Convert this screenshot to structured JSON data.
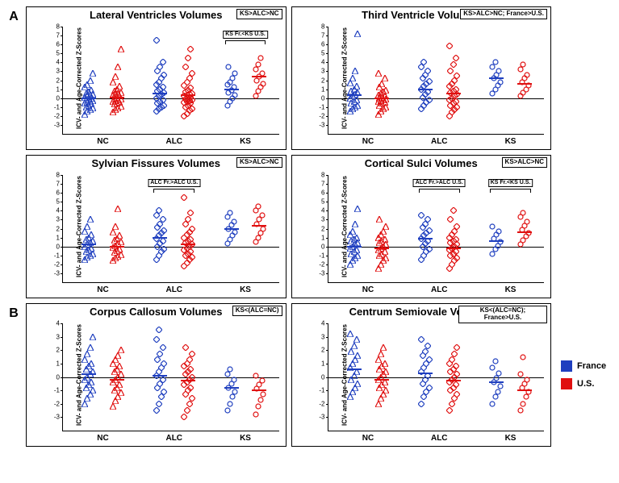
{
  "colors": {
    "france": "#1f3fbf",
    "us": "#e01010",
    "axis": "#000000",
    "bg": "#ffffff"
  },
  "legend": {
    "france": "France",
    "us": "U.S."
  },
  "section_labels": {
    "A": "A",
    "B": "B"
  },
  "axis": {
    "ylabel": "ICV- and Age-Corrected Z-Scores",
    "categories": [
      "NC",
      "ALC",
      "KS"
    ],
    "ymin": -4,
    "ymax": 8,
    "ystep": 1,
    "ymin_b": -4,
    "ymax_b": 4
  },
  "markers": {
    "NC": "triangle",
    "ALC": "diamond",
    "KS": "circle",
    "size": 8
  },
  "panels": [
    {
      "id": "lat_vent",
      "title": "Lateral Ventricles Volumes",
      "badge": "KS>ALC>NC",
      "ymin": -4,
      "ymax": 8,
      "brackets": [
        {
          "label": "KS Fr.<KS U.S.",
          "group": "KS"
        }
      ],
      "series": {
        "NC": {
          "france": {
            "mean": 0.0,
            "points": [
              -1.8,
              -1.5,
              -1.3,
              -1.1,
              -1.0,
              -0.8,
              -0.7,
              -0.6,
              -0.5,
              -0.4,
              -0.3,
              -0.2,
              -0.1,
              0.0,
              0.1,
              0.2,
              0.3,
              0.4,
              0.5,
              0.7,
              0.9,
              1.2,
              1.5,
              2.0,
              2.8
            ]
          },
          "us": {
            "mean": 0.1,
            "points": [
              -1.6,
              -1.3,
              -1.1,
              -0.9,
              -0.7,
              -0.6,
              -0.5,
              -0.4,
              -0.3,
              -0.2,
              -0.1,
              0.0,
              0.1,
              0.2,
              0.3,
              0.4,
              0.5,
              0.6,
              0.8,
              1.0,
              1.3,
              1.8,
              2.4,
              3.5,
              5.5
            ]
          }
        },
        "ALC": {
          "france": {
            "mean": 0.5,
            "points": [
              -1.5,
              -1.2,
              -1.0,
              -0.8,
              -0.6,
              -0.4,
              -0.2,
              0.0,
              0.2,
              0.4,
              0.6,
              0.8,
              1.0,
              1.2,
              1.5,
              1.8,
              2.2,
              2.6,
              3.0,
              3.5,
              4.0,
              6.5
            ]
          },
          "us": {
            "mean": 0.3,
            "points": [
              -2.0,
              -1.7,
              -1.4,
              -1.2,
              -1.0,
              -0.8,
              -0.6,
              -0.5,
              -0.4,
              -0.3,
              -0.2,
              -0.1,
              0.0,
              0.1,
              0.2,
              0.3,
              0.4,
              0.5,
              0.7,
              0.9,
              1.1,
              1.4,
              1.8,
              2.2,
              2.8,
              3.5,
              4.5,
              5.5
            ]
          }
        },
        "KS": {
          "france": {
            "mean": 1.0,
            "points": [
              -0.8,
              -0.4,
              0.0,
              0.3,
              0.6,
              0.9,
              1.2,
              1.5,
              1.8,
              2.2,
              2.8,
              3.5
            ]
          },
          "us": {
            "mean": 2.4,
            "points": [
              0.2,
              0.8,
              1.2,
              1.6,
              2.0,
              2.4,
              2.8,
              3.2,
              3.8,
              4.5
            ]
          }
        }
      }
    },
    {
      "id": "third_vent",
      "title": "Third Ventricle Volumes",
      "badge": "KS>ALC>NC; France>U.S.",
      "ymin": -4,
      "ymax": 8,
      "brackets": [],
      "series": {
        "NC": {
          "france": {
            "mean": 0.3,
            "points": [
              -1.5,
              -1.2,
              -1.0,
              -0.8,
              -0.6,
              -0.4,
              -0.2,
              0.0,
              0.2,
              0.4,
              0.6,
              0.8,
              1.0,
              1.3,
              1.7,
              2.2,
              3.0,
              7.2
            ]
          },
          "us": {
            "mean": 0.0,
            "points": [
              -1.8,
              -1.5,
              -1.2,
              -1.0,
              -0.8,
              -0.6,
              -0.5,
              -0.4,
              -0.3,
              -0.2,
              -0.1,
              0.0,
              0.1,
              0.2,
              0.3,
              0.5,
              0.7,
              0.9,
              1.2,
              1.6,
              2.2,
              2.8
            ]
          }
        },
        "ALC": {
          "france": {
            "mean": 1.0,
            "points": [
              -1.2,
              -0.8,
              -0.5,
              -0.2,
              0.1,
              0.4,
              0.7,
              1.0,
              1.3,
              1.6,
              1.9,
              2.2,
              2.6,
              3.0,
              3.5,
              4.0
            ]
          },
          "us": {
            "mean": 0.5,
            "points": [
              -2.0,
              -1.6,
              -1.3,
              -1.0,
              -0.8,
              -0.6,
              -0.4,
              -0.2,
              0.0,
              0.2,
              0.4,
              0.6,
              0.8,
              1.0,
              1.3,
              1.6,
              2.0,
              2.5,
              3.0,
              3.8,
              4.5,
              5.8
            ]
          }
        },
        "KS": {
          "france": {
            "mean": 2.2,
            "points": [
              0.5,
              1.0,
              1.4,
              1.8,
              2.2,
              2.6,
              3.0,
              3.5,
              4.0
            ]
          },
          "us": {
            "mean": 1.6,
            "points": [
              0.2,
              0.6,
              1.0,
              1.4,
              1.8,
              2.2,
              2.6,
              3.2,
              3.8
            ]
          }
        }
      }
    },
    {
      "id": "sylvian",
      "title": "Sylvian Fissures Volumes",
      "badge": "KS>ALC>NC",
      "ymin": -4,
      "ymax": 8,
      "brackets": [
        {
          "label": "ALC Fr.>ALC U.S.",
          "group": "ALC"
        }
      ],
      "series": {
        "NC": {
          "france": {
            "mean": 0.2,
            "points": [
              -1.5,
              -1.2,
              -1.0,
              -0.8,
              -0.6,
              -0.4,
              -0.2,
              0.0,
              0.2,
              0.4,
              0.6,
              0.8,
              1.0,
              1.3,
              1.7,
              2.2,
              3.0
            ]
          },
          "us": {
            "mean": 0.0,
            "points": [
              -1.6,
              -1.3,
              -1.1,
              -0.9,
              -0.7,
              -0.5,
              -0.3,
              -0.1,
              0.1,
              0.3,
              0.5,
              0.7,
              0.9,
              1.2,
              1.6,
              2.2,
              4.2
            ]
          }
        },
        "ALC": {
          "france": {
            "mean": 1.0,
            "points": [
              -1.5,
              -1.0,
              -0.6,
              -0.3,
              0.0,
              0.3,
              0.6,
              0.9,
              1.2,
              1.5,
              1.8,
              2.1,
              2.5,
              3.0,
              3.5,
              4.0
            ]
          },
          "us": {
            "mean": 0.2,
            "points": [
              -2.2,
              -1.8,
              -1.5,
              -1.2,
              -1.0,
              -0.8,
              -0.6,
              -0.4,
              -0.2,
              0.0,
              0.2,
              0.4,
              0.6,
              0.8,
              1.0,
              1.3,
              1.6,
              2.0,
              2.5,
              3.0,
              3.8,
              5.5
            ]
          }
        },
        "KS": {
          "france": {
            "mean": 2.0,
            "points": [
              0.3,
              0.8,
              1.2,
              1.6,
              2.0,
              2.4,
              2.8,
              3.3,
              3.8
            ]
          },
          "us": {
            "mean": 2.3,
            "points": [
              0.5,
              1.0,
              1.5,
              2.0,
              2.5,
              3.0,
              3.5,
              4.0,
              4.5
            ]
          }
        }
      }
    },
    {
      "id": "cortical",
      "title": "Cortical Sulci Volumes",
      "badge": "KS>ALC>NC",
      "ymin": -4,
      "ymax": 8,
      "brackets": [
        {
          "label": "ALC Fr.>ALC U.S.",
          "group": "ALC"
        },
        {
          "label": "KS Fr.<KS U.S.",
          "group": "KS"
        }
      ],
      "series": {
        "NC": {
          "france": {
            "mean": 0.0,
            "points": [
              -2.0,
              -1.6,
              -1.3,
              -1.0,
              -0.8,
              -0.6,
              -0.4,
              -0.2,
              0.0,
              0.2,
              0.4,
              0.6,
              0.8,
              1.0,
              1.3,
              1.7,
              2.5,
              4.2
            ]
          },
          "us": {
            "mean": -0.2,
            "points": [
              -2.5,
              -2.0,
              -1.6,
              -1.3,
              -1.0,
              -0.8,
              -0.6,
              -0.4,
              -0.2,
              0.0,
              0.2,
              0.4,
              0.6,
              0.8,
              1.0,
              1.3,
              1.7,
              2.2,
              3.0
            ]
          }
        },
        "ALC": {
          "france": {
            "mean": 0.9,
            "points": [
              -1.5,
              -1.0,
              -0.6,
              -0.3,
              0.0,
              0.3,
              0.6,
              0.9,
              1.2,
              1.5,
              1.8,
              2.1,
              2.5,
              3.0,
              3.5
            ]
          },
          "us": {
            "mean": -0.2,
            "points": [
              -2.5,
              -2.0,
              -1.6,
              -1.3,
              -1.0,
              -0.8,
              -0.6,
              -0.4,
              -0.2,
              0.0,
              0.2,
              0.4,
              0.6,
              0.8,
              1.0,
              1.3,
              1.7,
              2.2,
              3.0,
              4.0
            ]
          }
        },
        "KS": {
          "france": {
            "mean": 0.6,
            "points": [
              -0.8,
              -0.3,
              0.1,
              0.5,
              0.9,
              1.3,
              1.7,
              2.2
            ]
          },
          "us": {
            "mean": 1.6,
            "points": [
              0.2,
              0.7,
              1.1,
              1.5,
              1.9,
              2.3,
              2.8,
              3.3,
              3.8
            ]
          }
        }
      }
    },
    {
      "id": "corpus",
      "title": "Corpus Callosum Volumes",
      "badge": "KS<(ALC=NC)",
      "ymin": -4,
      "ymax": 4,
      "brackets": [],
      "series": {
        "NC": {
          "france": {
            "mean": 0.2,
            "points": [
              -2.0,
              -1.6,
              -1.3,
              -1.0,
              -0.8,
              -0.6,
              -0.4,
              -0.2,
              0.0,
              0.2,
              0.4,
              0.6,
              0.8,
              1.0,
              1.3,
              1.7,
              2.2,
              3.0
            ]
          },
          "us": {
            "mean": -0.2,
            "points": [
              -2.2,
              -1.8,
              -1.5,
              -1.2,
              -1.0,
              -0.8,
              -0.6,
              -0.4,
              -0.2,
              0.0,
              0.2,
              0.4,
              0.6,
              0.8,
              1.0,
              1.3,
              1.6,
              2.0
            ]
          }
        },
        "ALC": {
          "france": {
            "mean": 0.1,
            "points": [
              -2.5,
              -2.0,
              -1.5,
              -1.1,
              -0.8,
              -0.5,
              -0.2,
              0.1,
              0.4,
              0.7,
              1.0,
              1.3,
              1.7,
              2.2,
              2.8,
              3.5
            ]
          },
          "us": {
            "mean": -0.3,
            "points": [
              -3.0,
              -2.5,
              -2.0,
              -1.6,
              -1.3,
              -1.0,
              -0.8,
              -0.6,
              -0.4,
              -0.2,
              0.0,
              0.2,
              0.4,
              0.6,
              0.8,
              1.0,
              1.3,
              1.7,
              2.2
            ]
          }
        },
        "KS": {
          "france": {
            "mean": -0.8,
            "points": [
              -2.5,
              -2.0,
              -1.5,
              -1.1,
              -0.8,
              -0.5,
              -0.2,
              0.2,
              0.6
            ]
          },
          "us": {
            "mean": -1.0,
            "points": [
              -2.8,
              -2.2,
              -1.7,
              -1.3,
              -0.9,
              -0.6,
              -0.3,
              0.1
            ]
          }
        }
      }
    },
    {
      "id": "centrum",
      "title": "Centrum Semiovale Volumes",
      "badge": "KS<(ALC=NC); France>U.S.",
      "ymin": -4,
      "ymax": 4,
      "brackets": [],
      "series": {
        "NC": {
          "france": {
            "mean": 0.6,
            "points": [
              -1.5,
              -1.1,
              -0.8,
              -0.5,
              -0.2,
              0.1,
              0.4,
              0.7,
              1.0,
              1.3,
              1.6,
              1.9,
              2.3,
              2.8,
              3.2
            ]
          },
          "us": {
            "mean": -0.2,
            "points": [
              -2.0,
              -1.6,
              -1.3,
              -1.0,
              -0.8,
              -0.6,
              -0.4,
              -0.2,
              0.0,
              0.2,
              0.4,
              0.6,
              0.8,
              1.0,
              1.3,
              1.7,
              2.2
            ]
          }
        },
        "ALC": {
          "france": {
            "mean": 0.3,
            "points": [
              -2.0,
              -1.5,
              -1.1,
              -0.8,
              -0.5,
              -0.2,
              0.1,
              0.4,
              0.7,
              1.0,
              1.3,
              1.6,
              1.9,
              2.3,
              2.8
            ]
          },
          "us": {
            "mean": -0.3,
            "points": [
              -2.5,
              -2.0,
              -1.6,
              -1.3,
              -1.0,
              -0.8,
              -0.6,
              -0.4,
              -0.2,
              0.0,
              0.2,
              0.4,
              0.6,
              0.8,
              1.0,
              1.3,
              1.7,
              2.2
            ]
          }
        },
        "KS": {
          "france": {
            "mean": -0.4,
            "points": [
              -2.0,
              -1.5,
              -1.1,
              -0.7,
              -0.4,
              -0.1,
              0.3,
              0.7,
              1.2
            ]
          },
          "us": {
            "mean": -1.0,
            "points": [
              -2.5,
              -2.0,
              -1.5,
              -1.1,
              -0.8,
              -0.5,
              -0.2,
              0.2,
              1.5
            ]
          }
        }
      }
    }
  ]
}
